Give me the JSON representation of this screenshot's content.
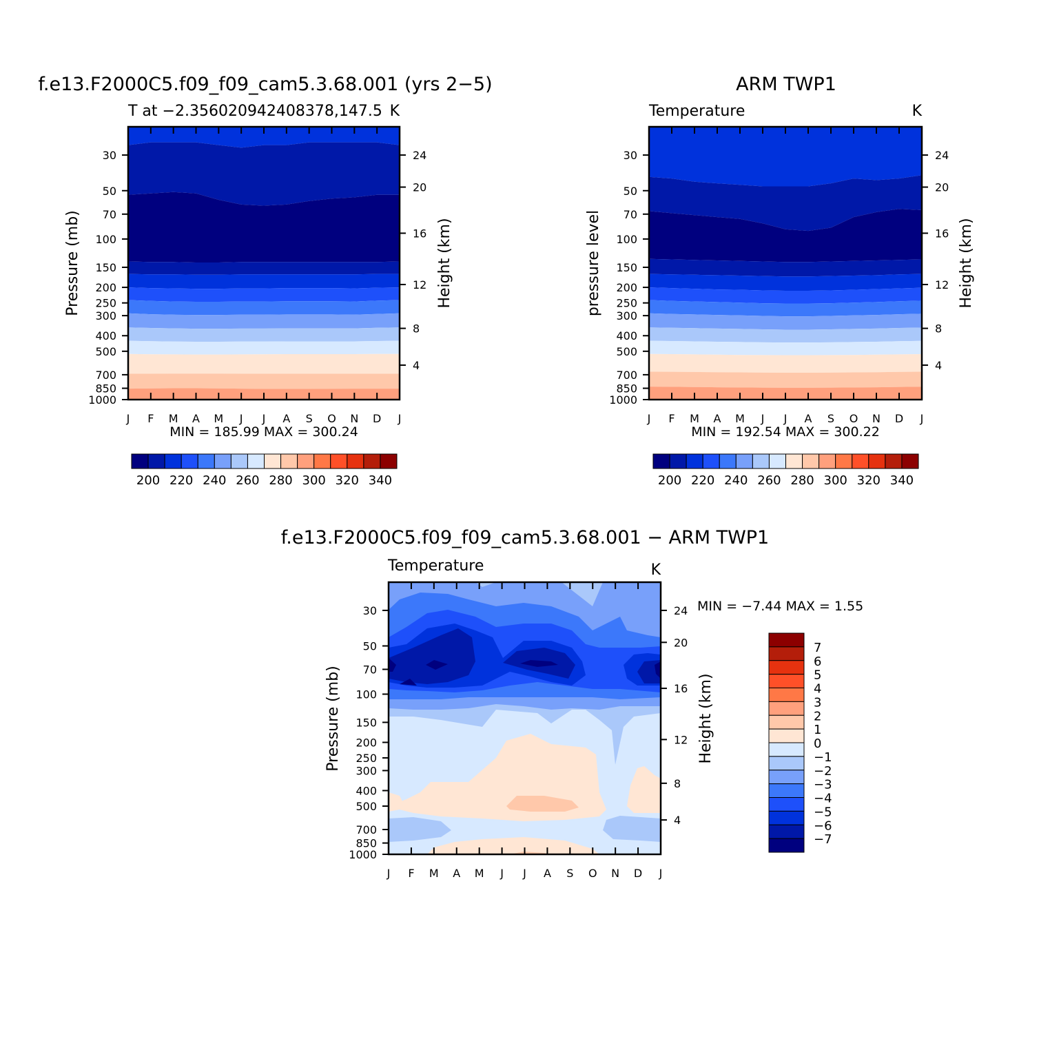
{
  "colors": {
    "abs_scale": [
      "#00007f",
      "#0018a8",
      "#0032dc",
      "#1e50fa",
      "#3c78fa",
      "#78a0fa",
      "#aac8fa",
      "#d7e9ff",
      "#ffe6d4",
      "#ffc8aa",
      "#ffa07d",
      "#ff7846",
      "#ff5028",
      "#e6320f",
      "#b41e0a",
      "#8c0000"
    ],
    "diff_scale": [
      "#00007f",
      "#0018a8",
      "#0032dc",
      "#1e50fa",
      "#3c78fa",
      "#78a0fa",
      "#aac8fa",
      "#d7e9ff",
      "#ffe6d4",
      "#ffc8aa",
      "#ffa07d",
      "#ff7846",
      "#ff5028",
      "#e6320f",
      "#b41e0a",
      "#8c0000"
    ]
  },
  "panels": {
    "model": {
      "title": "f.e13.F2000C5.f09_f09_cam5.3.68.001 (yrs 2−5)",
      "subtitle_left": "T at −2.356020942408378,147.5",
      "subtitle_right": "K",
      "ylabel": "Pressure (mb)",
      "y2label": "Height (km)",
      "minmax": "MIN = 185.99 MAX = 300.24"
    },
    "obs": {
      "title": "ARM TWP1",
      "subtitle_left": "Temperature",
      "subtitle_right": "K",
      "ylabel": "pressure level",
      "y2label": "Height (km)",
      "minmax": "MIN = 192.54 MAX = 300.22"
    },
    "diff": {
      "title": "f.e13.F2000C5.f09_f09_cam5.3.68.001 − ARM TWP1",
      "subtitle_left": "Temperature",
      "subtitle_right": "K",
      "ylabel": "Pressure (mb)",
      "y2label": "Height (km)",
      "minmax": "MIN = −7.44 MAX = 1.55"
    }
  },
  "chart_data": [
    {
      "type": "heatmap",
      "name": "model",
      "x_labels": [
        "J",
        "F",
        "M",
        "A",
        "M",
        "J",
        "J",
        "A",
        "S",
        "O",
        "N",
        "D",
        "J"
      ],
      "y_ticks": [
        "30",
        "50",
        "70",
        "100",
        "150",
        "200",
        "250",
        "300",
        "400",
        "500",
        "700",
        "850",
        "1000"
      ],
      "y2_ticks": [
        "24",
        "20",
        "16",
        "12",
        "8",
        "4"
      ],
      "levels": [
        200,
        210,
        220,
        230,
        240,
        250,
        260,
        270,
        280,
        290,
        300,
        310,
        320,
        330,
        340
      ],
      "colorbar_labels": [
        "200",
        "220",
        "240",
        "260",
        "280",
        "300",
        "320",
        "340"
      ],
      "ylim_mb": [
        1000,
        20
      ],
      "boundaries_mb": {
        "note": "pressure of each contour boundary across 13 months (J..J)",
        "b200": [
          53,
          52,
          51,
          52,
          57,
          61,
          62,
          61,
          58,
          56,
          55,
          53,
          53
        ],
        "b210": [
          26,
          25,
          25,
          25,
          26,
          27,
          26,
          26,
          25,
          25,
          25,
          25,
          26
        ],
        "b195": [
          138,
          139,
          139,
          140,
          140,
          139,
          139,
          139,
          139,
          139,
          139,
          139,
          138
        ],
        "b205": [
          165,
          166,
          166,
          167,
          167,
          166,
          166,
          166,
          166,
          166,
          166,
          165,
          165
        ],
        "b215": [
          200,
          202,
          203,
          204,
          204,
          203,
          203,
          202,
          202,
          202,
          203,
          201,
          200
        ],
        "b225": [
          240,
          243,
          245,
          246,
          246,
          245,
          245,
          244,
          244,
          244,
          245,
          242,
          240
        ],
        "b235": [
          290,
          294,
          296,
          297,
          297,
          296,
          296,
          295,
          295,
          295,
          296,
          293,
          290
        ],
        "b245": [
          355,
          358,
          360,
          362,
          362,
          361,
          361,
          360,
          360,
          360,
          360,
          357,
          355
        ],
        "b255": [
          430,
          433,
          435,
          436,
          436,
          435,
          435,
          434,
          434,
          434,
          434,
          432,
          430
        ],
        "b265": [
          520,
          522,
          523,
          524,
          524,
          523,
          522,
          521,
          521,
          521,
          521,
          520,
          520
        ],
        "b275": [
          690,
          690,
          689,
          689,
          689,
          690,
          690,
          690,
          690,
          690,
          690,
          690,
          690
        ],
        "b285": [
          855,
          852,
          850,
          850,
          852,
          855,
          857,
          857,
          857,
          856,
          855,
          855,
          855
        ],
        "b295": [
          990,
          990,
          990,
          990,
          990,
          990,
          990,
          990,
          990,
          990,
          990,
          990,
          990
        ]
      }
    },
    {
      "type": "heatmap",
      "name": "obs",
      "x_labels": [
        "J",
        "F",
        "M",
        "A",
        "M",
        "J",
        "J",
        "A",
        "S",
        "O",
        "N",
        "D",
        "J"
      ],
      "y_ticks": [
        "30",
        "50",
        "70",
        "100",
        "150",
        "200",
        "250",
        "300",
        "400",
        "500",
        "700",
        "850",
        "1000"
      ],
      "y2_ticks": [
        "24",
        "20",
        "16",
        "12",
        "8",
        "4"
      ],
      "levels": [
        200,
        210,
        220,
        230,
        240,
        250,
        260,
        270,
        280,
        290,
        300,
        310,
        320,
        330,
        340
      ],
      "colorbar_labels": [
        "200",
        "220",
        "240",
        "260",
        "280",
        "300",
        "320",
        "340"
      ],
      "ylim_mb": [
        1000,
        20
      ],
      "boundaries_mb": {
        "b210": [
          41,
          42,
          44,
          45,
          46,
          47,
          47,
          47,
          45,
          42,
          43,
          42,
          40
        ],
        "b200": [
          67,
          69,
          71,
          73,
          75,
          80,
          87,
          89,
          85,
          73,
          68,
          65,
          66
        ],
        "b195": [
          133,
          134,
          135,
          136,
          137,
          138,
          139,
          139,
          138,
          137,
          136,
          135,
          134
        ],
        "b205": [
          165,
          166,
          167,
          168,
          169,
          170,
          171,
          171,
          170,
          169,
          168,
          166,
          165
        ],
        "b215": [
          200,
          202,
          204,
          206,
          207,
          209,
          210,
          210,
          209,
          207,
          205,
          203,
          201
        ],
        "b225": [
          240,
          243,
          245,
          247,
          249,
          251,
          252,
          252,
          251,
          249,
          247,
          244,
          242
        ],
        "b235": [
          290,
          293,
          295,
          297,
          299,
          301,
          303,
          303,
          301,
          299,
          297,
          294,
          292
        ],
        "b245": [
          355,
          357,
          359,
          361,
          363,
          365,
          367,
          367,
          365,
          363,
          361,
          358,
          356
        ],
        "b255": [
          430,
          432,
          434,
          436,
          438,
          440,
          441,
          441,
          440,
          438,
          436,
          433,
          431
        ],
        "b265": [
          520,
          521,
          523,
          525,
          527,
          528,
          529,
          529,
          528,
          527,
          525,
          523,
          521
        ],
        "b275": [
          670,
          671,
          673,
          675,
          677,
          679,
          680,
          680,
          679,
          677,
          675,
          672,
          670
        ],
        "b285": [
          830,
          832,
          835,
          838,
          840,
          842,
          843,
          843,
          842,
          840,
          838,
          834,
          831
        ]
      }
    },
    {
      "type": "heatmap",
      "name": "diff",
      "x_labels": [
        "J",
        "F",
        "M",
        "A",
        "M",
        "J",
        "J",
        "A",
        "S",
        "O",
        "N",
        "D",
        "J"
      ],
      "y_ticks": [
        "30",
        "50",
        "70",
        "100",
        "150",
        "200",
        "250",
        "300",
        "400",
        "500",
        "700",
        "850",
        "1000"
      ],
      "y2_ticks": [
        "24",
        "20",
        "16",
        "12",
        "8",
        "4"
      ],
      "levels": [
        -7,
        -6,
        -5,
        -4,
        -3,
        -2,
        -1,
        0,
        1,
        2,
        3,
        4,
        5,
        6,
        7
      ],
      "colorbar_labels": [
        "7",
        "6",
        "5",
        "4",
        "3",
        "2",
        "1",
        "0",
        "−1",
        "−2",
        "−3",
        "−4",
        "−5",
        "−6",
        "−7"
      ],
      "ylim_mb": [
        1000,
        20
      ]
    }
  ]
}
